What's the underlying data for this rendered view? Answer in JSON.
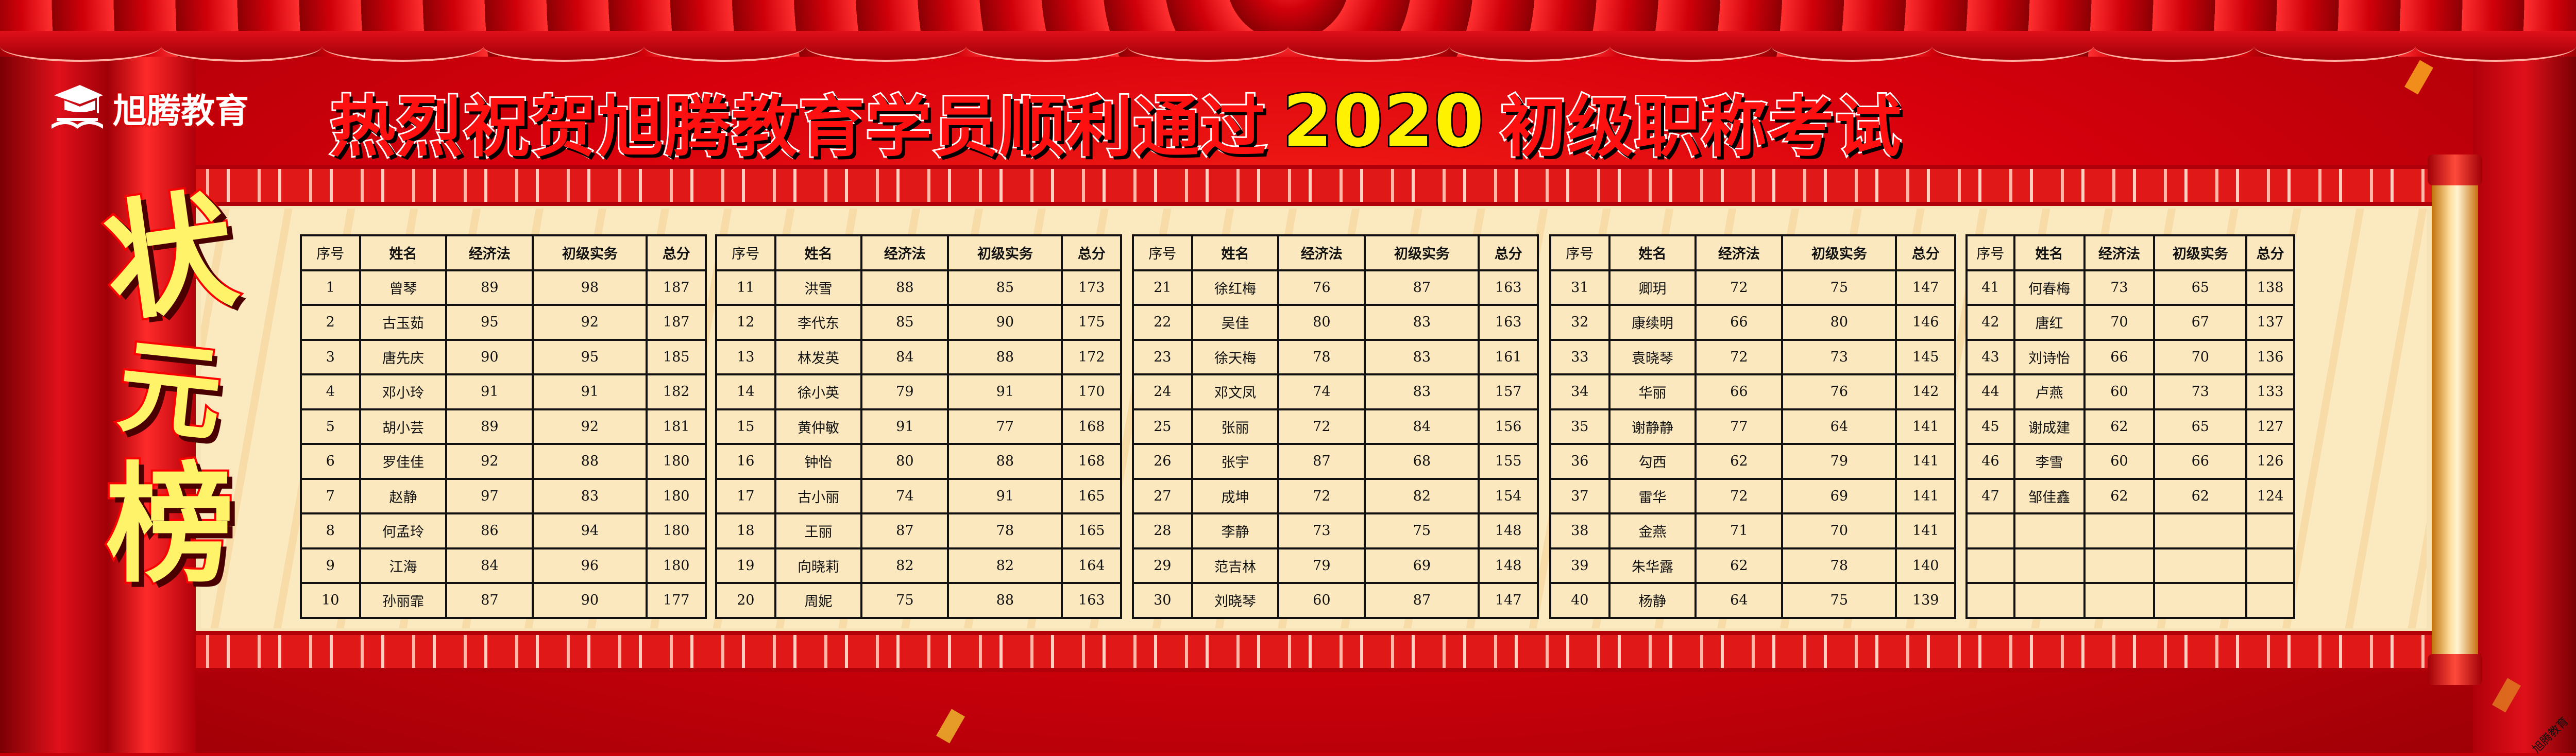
{
  "brand": {
    "name": "旭腾教育",
    "watermark": "旭腾教育"
  },
  "title": {
    "part1": "热烈祝贺旭腾教育学员顺利通过",
    "year": "2020",
    "part2": "初级职称考试"
  },
  "champion_list": [
    "状",
    "元",
    "榜"
  ],
  "colors": {
    "background": "#d8000c",
    "paper": "#fbe8be",
    "title_year": "#fff200",
    "champion": "#fff36a"
  },
  "columns": [
    "序号",
    "姓名",
    "经济法",
    "初级实务",
    "总分"
  ],
  "tables": [
    {
      "rows": [
        [
          "1",
          "曾琴",
          "89",
          "98",
          "187"
        ],
        [
          "2",
          "古玉茹",
          "95",
          "92",
          "187"
        ],
        [
          "3",
          "唐先庆",
          "90",
          "95",
          "185"
        ],
        [
          "4",
          "邓小玲",
          "91",
          "91",
          "182"
        ],
        [
          "5",
          "胡小芸",
          "89",
          "92",
          "181"
        ],
        [
          "6",
          "罗佳佳",
          "92",
          "88",
          "180"
        ],
        [
          "7",
          "赵静",
          "97",
          "83",
          "180"
        ],
        [
          "8",
          "何孟玲",
          "86",
          "94",
          "180"
        ],
        [
          "9",
          "江海",
          "84",
          "96",
          "180"
        ],
        [
          "10",
          "孙丽霏",
          "87",
          "90",
          "177"
        ]
      ]
    },
    {
      "rows": [
        [
          "11",
          "洪雪",
          "88",
          "85",
          "173"
        ],
        [
          "12",
          "李代东",
          "85",
          "90",
          "175"
        ],
        [
          "13",
          "林发英",
          "84",
          "88",
          "172"
        ],
        [
          "14",
          "徐小英",
          "79",
          "91",
          "170"
        ],
        [
          "15",
          "黄仲敏",
          "91",
          "77",
          "168"
        ],
        [
          "16",
          "钟怡",
          "80",
          "88",
          "168"
        ],
        [
          "17",
          "古小丽",
          "74",
          "91",
          "165"
        ],
        [
          "18",
          "王丽",
          "87",
          "78",
          "165"
        ],
        [
          "19",
          "向晓莉",
          "82",
          "82",
          "164"
        ],
        [
          "20",
          "周妮",
          "75",
          "88",
          "163"
        ]
      ]
    },
    {
      "rows": [
        [
          "21",
          "徐红梅",
          "76",
          "87",
          "163"
        ],
        [
          "22",
          "吴佳",
          "80",
          "83",
          "163"
        ],
        [
          "23",
          "徐天梅",
          "78",
          "83",
          "161"
        ],
        [
          "24",
          "邓文凤",
          "74",
          "83",
          "157"
        ],
        [
          "25",
          "张丽",
          "72",
          "84",
          "156"
        ],
        [
          "26",
          "张宇",
          "87",
          "68",
          "155"
        ],
        [
          "27",
          "成坤",
          "72",
          "82",
          "154"
        ],
        [
          "28",
          "李静",
          "73",
          "75",
          "148"
        ],
        [
          "29",
          "范吉林",
          "79",
          "69",
          "148"
        ],
        [
          "30",
          "刘晓琴",
          "60",
          "87",
          "147"
        ]
      ]
    },
    {
      "rows": [
        [
          "31",
          "卿玥",
          "72",
          "75",
          "147"
        ],
        [
          "32",
          "康续明",
          "66",
          "80",
          "146"
        ],
        [
          "33",
          "袁晓琴",
          "72",
          "73",
          "145"
        ],
        [
          "34",
          "华丽",
          "66",
          "76",
          "142"
        ],
        [
          "35",
          "谢静静",
          "77",
          "64",
          "141"
        ],
        [
          "36",
          "勾西",
          "62",
          "79",
          "141"
        ],
        [
          "37",
          "雷华",
          "72",
          "69",
          "141"
        ],
        [
          "38",
          "金燕",
          "71",
          "70",
          "141"
        ],
        [
          "39",
          "朱华露",
          "62",
          "78",
          "140"
        ],
        [
          "40",
          "杨静",
          "64",
          "75",
          "139"
        ]
      ]
    },
    {
      "rows": [
        [
          "41",
          "何春梅",
          "73",
          "65",
          "138"
        ],
        [
          "42",
          "唐红",
          "70",
          "67",
          "137"
        ],
        [
          "43",
          "刘诗怡",
          "66",
          "70",
          "136"
        ],
        [
          "44",
          "卢燕",
          "60",
          "73",
          "133"
        ],
        [
          "45",
          "谢成建",
          "62",
          "65",
          "127"
        ],
        [
          "46",
          "李雪",
          "60",
          "66",
          "126"
        ],
        [
          "47",
          "邹佳鑫",
          "62",
          "62",
          "124"
        ],
        [
          "",
          "",
          "",
          "",
          ""
        ],
        [
          "",
          "",
          "",
          "",
          ""
        ],
        [
          "",
          "",
          "",
          "",
          ""
        ]
      ]
    }
  ]
}
